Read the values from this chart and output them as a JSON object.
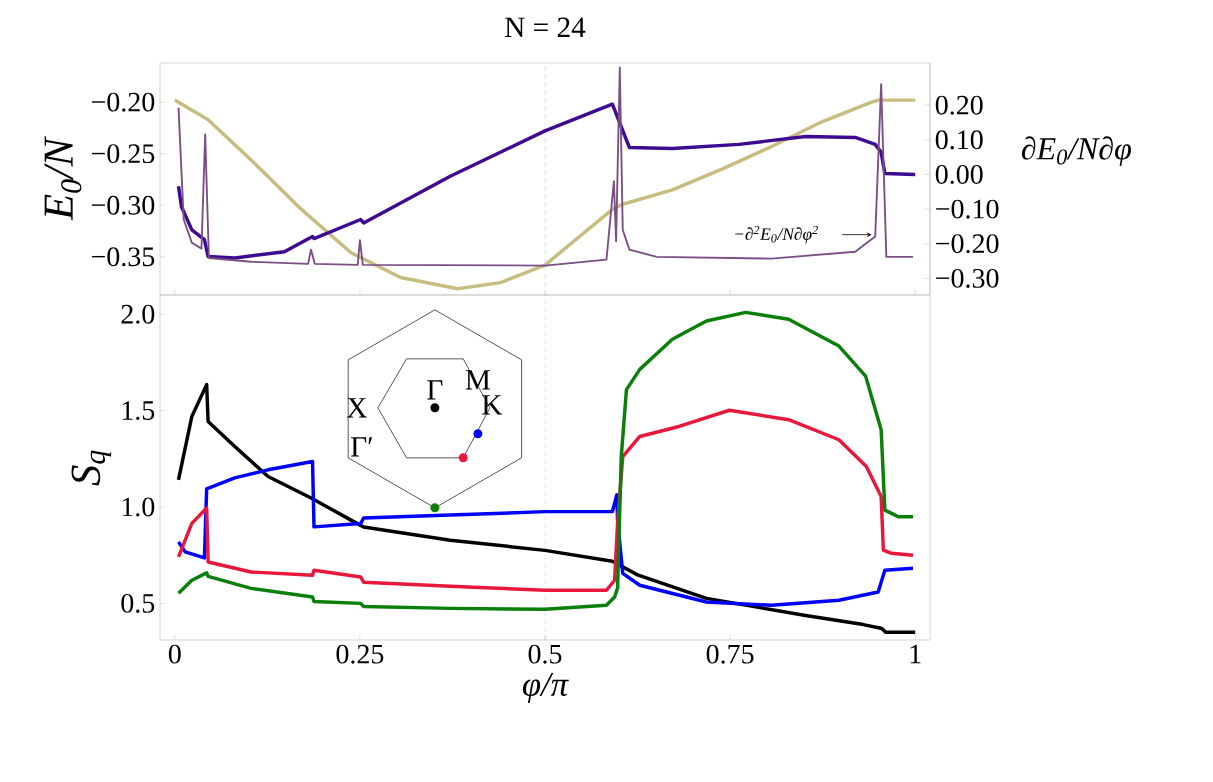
{
  "chart_data": [
    {
      "type": "line",
      "title": "N = 24",
      "ylabel": "E$_{0}$/N",
      "y2label": "∂E$_{0}$/N∂φ",
      "xlim": [
        -0.02,
        1.02
      ],
      "xticks": [
        0,
        0.25,
        0.5,
        0.75,
        1
      ],
      "tick_labels": "y",
      "ylim": [
        -0.387,
        -0.162
      ],
      "yticks": [
        {
          "value": -0.35,
          "label": "−0.35"
        },
        {
          "value": -0.3,
          "label": "−0.30"
        },
        {
          "value": -0.25,
          "label": "−0.25"
        },
        {
          "value": -0.2,
          "label": "−0.20"
        }
      ],
      "y2lim": [
        -0.348,
        0.322
      ],
      "y2ticks": [
        {
          "value": -0.3,
          "label": "−0.30"
        },
        {
          "value": -0.2,
          "label": "−0.20"
        },
        {
          "value": -0.1,
          "label": "−0.10"
        },
        {
          "value": 0,
          "label": "0.00"
        },
        {
          "value": 0.1,
          "label": "0.10"
        },
        {
          "value": 0.2,
          "label": "0.20"
        }
      ],
      "ref_lines": [
        {
          "axis": "x",
          "value": 0.5,
          "color": "#a6a6a6",
          "line_style": "dashed"
        }
      ],
      "annotations": [
        "−∂$^{2}$E$_{0}$/N∂φ$^{2}$"
      ],
      "series": [
        {
          "color": "#c8bd80",
          "x": [
            0,
            0.045,
            0.103,
            0.171,
            0.238,
            0.305,
            0.382,
            0.44,
            0.5,
            0.591,
            0.605,
            0.672,
            0.739,
            0.806,
            0.874,
            0.941,
            0.95,
            1.0
          ],
          "values": [
            -0.198,
            -0.217,
            -0.256,
            -0.304,
            -0.346,
            -0.37,
            -0.381,
            -0.375,
            -0.358,
            -0.304,
            -0.299,
            -0.285,
            -0.265,
            -0.243,
            -0.219,
            -0.2,
            -0.198,
            -0.198
          ]
        },
        {
          "color": "#3d0a91",
          "axis": "y2",
          "x": [
            0.005,
            0.009,
            0.023,
            0.04,
            0.045,
            0.081,
            0.148,
            0.186,
            0.188,
            0.251,
            0.255,
            0.372,
            0.5,
            0.591,
            0.598,
            0.608,
            0.614,
            0.672,
            0.762,
            0.852,
            0.919,
            0.946,
            0.954,
            0.959,
            1.0
          ],
          "values": [
            -0.034,
            -0.093,
            -0.16,
            -0.188,
            -0.237,
            -0.241,
            -0.223,
            -0.179,
            -0.185,
            -0.13,
            -0.14,
            -0.005,
            0.126,
            0.203,
            0.165,
            0.11,
            0.078,
            0.075,
            0.087,
            0.11,
            0.107,
            0.087,
            0.064,
            0.003,
            0.0
          ]
        },
        {
          "color": "#7a4f85",
          "axis": "y2",
          "x": [
            0.005,
            0.012,
            0.023,
            0.036,
            0.041,
            0.046,
            0.103,
            0.18,
            0.184,
            0.189,
            0.247,
            0.25,
            0.254,
            0.5,
            0.583,
            0.593,
            0.596,
            0.601,
            0.605,
            0.614,
            0.651,
            0.806,
            0.919,
            0.946,
            0.954,
            0.961,
            0.997
          ],
          "values": [
            0.193,
            -0.13,
            -0.197,
            -0.214,
            0.116,
            -0.241,
            -0.252,
            -0.258,
            -0.217,
            -0.258,
            -0.261,
            -0.19,
            -0.261,
            -0.263,
            -0.246,
            -0.019,
            -0.193,
            0.309,
            -0.16,
            -0.217,
            -0.238,
            -0.243,
            -0.223,
            -0.179,
            0.261,
            -0.238,
            -0.238
          ]
        }
      ]
    },
    {
      "type": "line",
      "xlabel": "φ/π",
      "ylabel": "S$_{q}$",
      "xlim": [
        -0.02,
        1.02
      ],
      "xticks": [
        0,
        0.25,
        0.5,
        0.75,
        1
      ],
      "ylim": [
        0.31,
        2.1
      ],
      "yticks": [
        0.5,
        {
          "value": 1,
          "label": "1.0"
        },
        1.5,
        {
          "value": 2,
          "label": "2.0"
        }
      ],
      "ref_lines": [
        {
          "axis": "x",
          "value": 0.5,
          "color": "#a6a6a6",
          "line_style": "dashed"
        }
      ],
      "annotations": [
        "Γ",
        "M",
        "K",
        "X",
        "Γ′"
      ],
      "series": [
        {
          "color": "#000000",
          "x": [
            0.005,
            0.023,
            0.043,
            0.045,
            0.081,
            0.126,
            0.184,
            0.238,
            0.255,
            0.372,
            0.5,
            0.591,
            0.625,
            0.718,
            0.852,
            0.93,
            0.955,
            0.96,
            1.0
          ],
          "values": [
            1.141,
            1.47,
            1.635,
            1.444,
            1.314,
            1.158,
            1.047,
            0.932,
            0.896,
            0.828,
            0.775,
            0.719,
            0.648,
            0.526,
            0.437,
            0.39,
            0.37,
            0.35,
            0.35
          ]
        },
        {
          "color": "#0000ff",
          "x": [
            0.005,
            0.014,
            0.04,
            0.043,
            0.081,
            0.126,
            0.186,
            0.188,
            0.251,
            0.255,
            0.372,
            0.5,
            0.591,
            0.597,
            0.598,
            0.605,
            0.628,
            0.718,
            0.806,
            0.897,
            0.95,
            0.959,
            0.997
          ],
          "values": [
            0.819,
            0.767,
            0.736,
            1.094,
            1.151,
            1.193,
            1.236,
            0.897,
            0.914,
            0.943,
            0.958,
            0.976,
            0.976,
            1.063,
            0.932,
            0.656,
            0.594,
            0.507,
            0.49,
            0.516,
            0.559,
            0.672,
            0.682
          ]
        },
        {
          "color": "#e8183c",
          "x": [
            0.005,
            0.023,
            0.043,
            0.045,
            0.103,
            0.186,
            0.188,
            0.251,
            0.255,
            0.372,
            0.5,
            0.583,
            0.594,
            0.598,
            0.605,
            0.628,
            0.681,
            0.749,
            0.829,
            0.897,
            0.934,
            0.954,
            0.957,
            0.968,
            0.997
          ],
          "values": [
            0.741,
            0.915,
            0.995,
            0.715,
            0.663,
            0.646,
            0.672,
            0.637,
            0.61,
            0.589,
            0.568,
            0.568,
            0.62,
            0.917,
            1.262,
            1.366,
            1.418,
            1.502,
            1.453,
            1.349,
            1.21,
            1.054,
            0.776,
            0.76,
            0.75
          ]
        },
        {
          "color": "#0a7f0a",
          "x": [
            0.005,
            0.023,
            0.043,
            0.045,
            0.103,
            0.186,
            0.188,
            0.251,
            0.255,
            0.372,
            0.5,
            0.583,
            0.594,
            0.598,
            0.603,
            0.61,
            0.628,
            0.672,
            0.718,
            0.771,
            0.829,
            0.897,
            0.933,
            0.954,
            0.959,
            0.977,
            0.997
          ],
          "values": [
            0.552,
            0.62,
            0.658,
            0.64,
            0.578,
            0.533,
            0.51,
            0.5,
            0.484,
            0.474,
            0.469,
            0.49,
            0.533,
            0.58,
            1.262,
            1.609,
            1.714,
            1.87,
            1.965,
            2.01,
            1.974,
            1.835,
            1.679,
            1.401,
            0.984,
            0.95,
            0.95
          ]
        }
      ]
    }
  ]
}
